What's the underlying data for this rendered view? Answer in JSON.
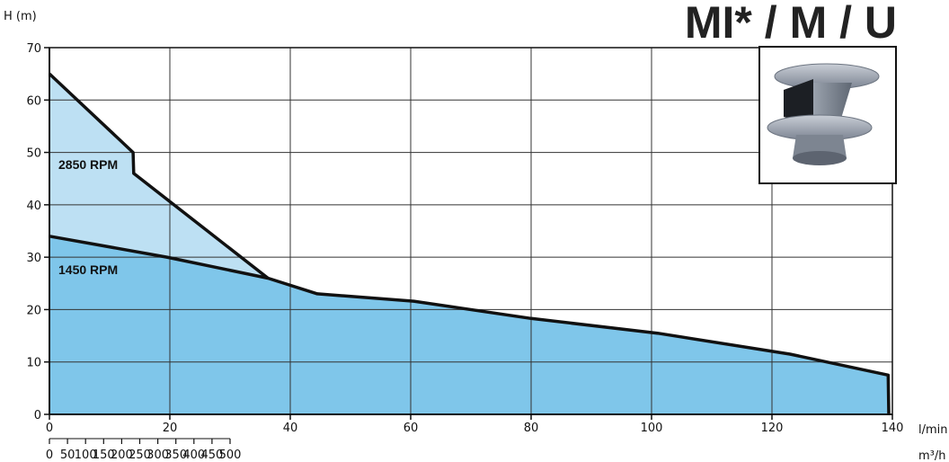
{
  "title": "MI* / M / U",
  "inset_icon": "impeller-photo",
  "colors": {
    "fill_2850": "#bde0f3",
    "fill_1450": "#7fc6ea",
    "curve": "#111111",
    "grid": "#333333"
  },
  "chart_data": {
    "type": "area",
    "title": "MI* / M / U",
    "ylabel": "H (m)",
    "x_units": [
      "l/min",
      "m³/h"
    ],
    "ylim": [
      0,
      70
    ],
    "xlim_m3h": [
      0,
      140
    ],
    "yticks": [
      "0",
      "10",
      "20",
      "30",
      "40",
      "50",
      "60",
      "70"
    ],
    "xticks_m3h": [
      "0",
      "20",
      "40",
      "60",
      "80",
      "100",
      "120",
      "140"
    ],
    "xticks_lmin": [
      "0",
      "50",
      "100",
      "150",
      "200",
      "250",
      "300",
      "350",
      "400",
      "450",
      "500"
    ],
    "grid": true,
    "series": [
      {
        "name": "2850 RPM",
        "x": [
          0,
          13.9,
          14.0,
          36.3
        ],
        "y": [
          65,
          50,
          46,
          26
        ]
      },
      {
        "name": "1450 RPM",
        "x": [
          0,
          19.5,
          36.3,
          44.5,
          60.5,
          80,
          101,
          123,
          139.3,
          139.4
        ],
        "y": [
          34,
          30,
          26,
          23,
          21.6,
          18.3,
          15.5,
          11.5,
          7.5,
          0
        ]
      }
    ]
  }
}
